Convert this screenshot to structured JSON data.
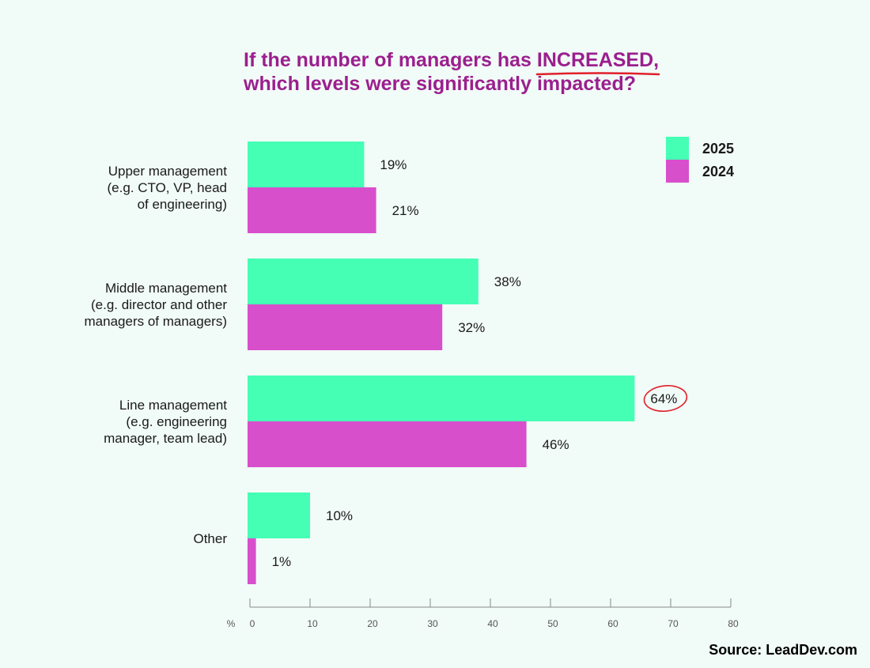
{
  "chart_data": {
    "type": "bar",
    "orientation": "horizontal",
    "title_line1_prefix": "If the number of managers has ",
    "title_emphasis": "INCREASED,",
    "title_line2": "which levels were significantly impacted?",
    "categories": [
      [
        "Upper management",
        "(e.g. CTO, VP, head",
        "of engineering)"
      ],
      [
        "Middle management",
        "(e.g. director and other",
        "managers of managers)"
      ],
      [
        "Line management",
        "(e.g. engineering",
        "manager, team lead)"
      ],
      [
        "Other"
      ]
    ],
    "series": [
      {
        "name": "2025",
        "color": "#44ffb4",
        "values": [
          19,
          38,
          64,
          10
        ],
        "labels": [
          "19%",
          "38%",
          "64%",
          "10%"
        ]
      },
      {
        "name": "2024",
        "color": "#d84fcc",
        "values": [
          21,
          32,
          46,
          1
        ],
        "labels": [
          "21%",
          "32%",
          "46%",
          "1%"
        ]
      }
    ],
    "highlighted_label": "64%",
    "axis_unit": "%",
    "xlim": [
      0,
      80
    ],
    "xticks": [
      0,
      10,
      20,
      30,
      40,
      50,
      60,
      70,
      80
    ],
    "legend_position": "top-right",
    "accent_underline_color": "#e0202a",
    "title_color": "#9b1f8e"
  },
  "source": "Source: LeadDev.com"
}
